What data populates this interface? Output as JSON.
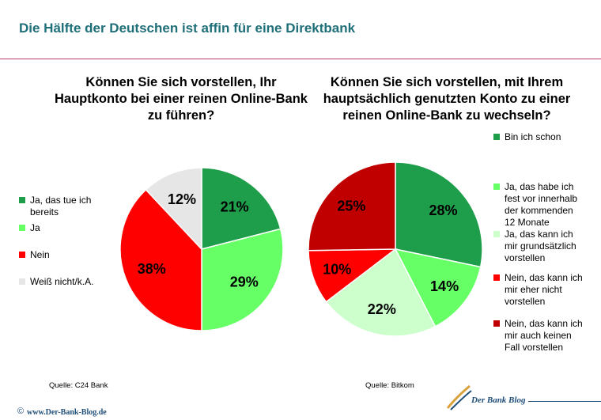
{
  "header": {
    "title": "Die Hälfte der Deutschen ist affin für eine Direktbank"
  },
  "chart_data": [
    {
      "type": "pie",
      "title": "Können Sie sich vorstellen, Ihr Hauptkonto bei einer reinen Online-Bank zu führen?",
      "title_lines": [
        "Können Sie sich vorstellen, Ihr",
        "Hauptkonto bei einer reinen Online-Bank",
        "zu führen?"
      ],
      "categories": [
        "Ja, das tue ich bereits",
        "Ja",
        "Nein",
        "Weiß nicht/k.A."
      ],
      "legend_lines": [
        [
          "Ja, das tue ich",
          "bereits"
        ],
        [
          "Ja"
        ],
        [
          "Nein"
        ],
        [
          "Weiß nicht/k.A."
        ]
      ],
      "values": [
        21,
        29,
        38,
        12
      ],
      "labels": [
        "21%",
        "29%",
        "38%",
        "12%"
      ],
      "colors": [
        "#1e9e4a",
        "#66ff66",
        "#ff0000",
        "#e6e6e6"
      ],
      "source": "Quelle:  C24 Bank"
    },
    {
      "type": "pie",
      "title": "Können Sie sich vorstellen, mit Ihrem hauptsächlich genutzten Konto zu einer reinen Online-Bank zu wechseln?",
      "title_lines": [
        "Können Sie sich vorstellen, mit Ihrem",
        "hauptsächlich genutzten Konto zu einer",
        "reinen Online-Bank zu wechseln?"
      ],
      "categories": [
        "Bin ich schon",
        "Ja, das habe ich fest vor innerhalb der kommenden 12 Monate",
        "Ja, das kann ich mir grundsätzlich vorstellen",
        "Nein, das kann ich mir eher nicht vorstellen",
        "Nein, das kann ich mir auch keinen Fall vorstellen"
      ],
      "legend_lines": [
        [
          "Bin ich schon"
        ],
        [
          "Ja, das habe ich",
          "fest vor innerhalb",
          "der kommenden",
          "12 Monate"
        ],
        [
          "Ja, das kann ich",
          "mir grundsätzlich",
          "vorstellen"
        ],
        [
          "Nein, das kann ich",
          "mir eher nicht",
          "vorstellen"
        ],
        [
          "Nein, das kann ich",
          "mir auch keinen",
          "Fall vorstellen"
        ]
      ],
      "values": [
        28,
        14,
        22,
        10,
        25
      ],
      "labels": [
        "28%",
        "14%",
        "22%",
        "10%",
        "25%"
      ],
      "colors": [
        "#1e9e4a",
        "#66ff66",
        "#ccffcc",
        "#ff0000",
        "#c00000"
      ],
      "source": "Quelle:  Bitkom"
    }
  ],
  "footer": {
    "copyright": "©",
    "url": "www.Der-Bank-Blog.de",
    "logo": "Der Bank Blog"
  }
}
